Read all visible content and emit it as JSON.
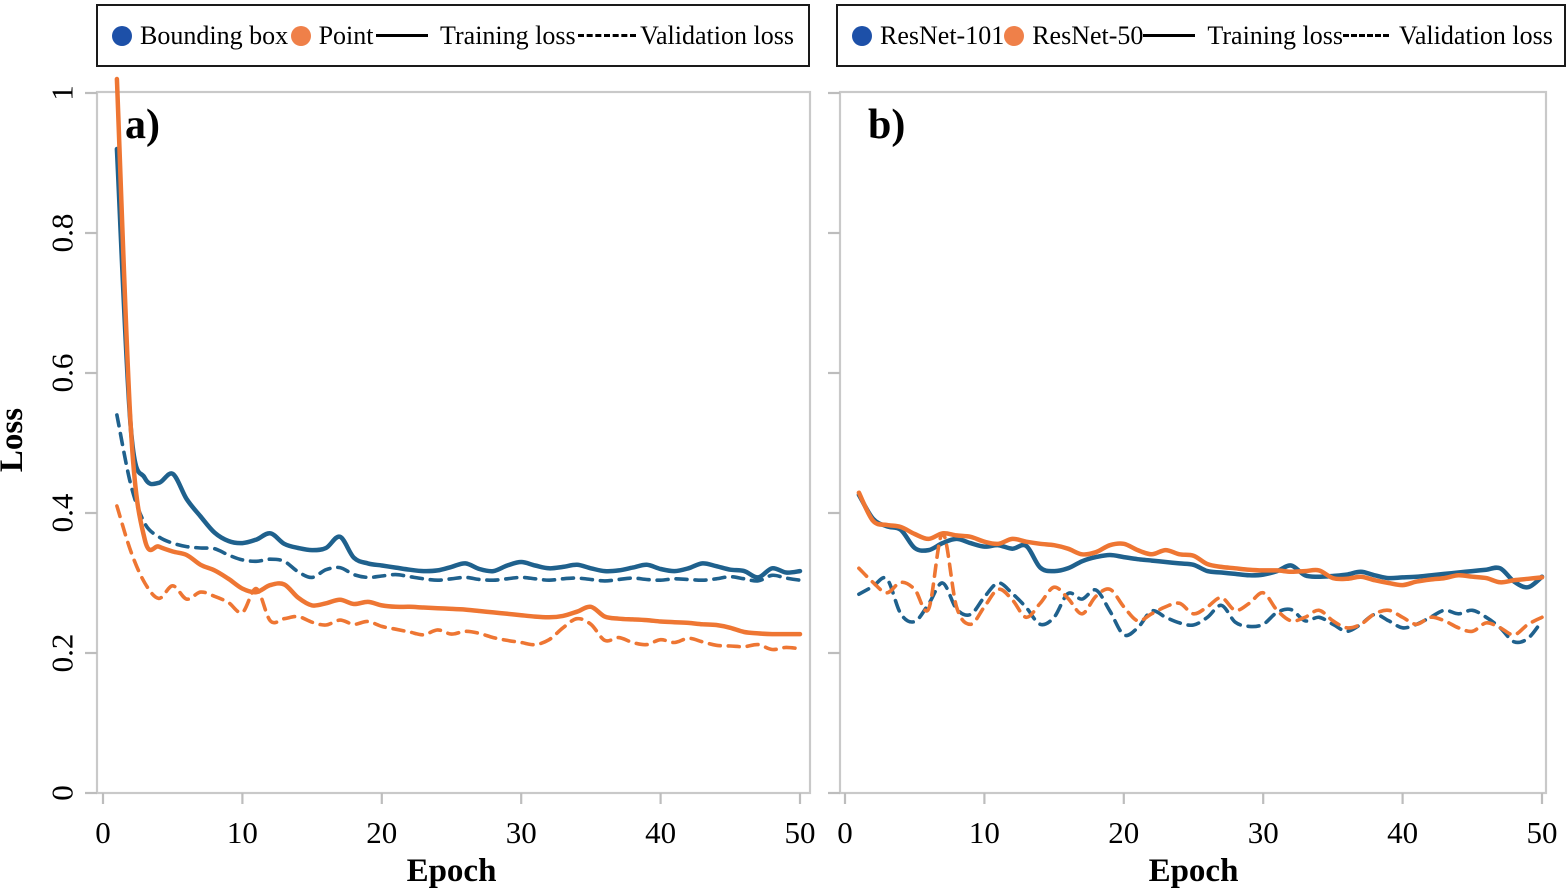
{
  "figure": {
    "background": "#ffffff",
    "axis_color": "#c9c9c9",
    "tick_color": "#bdbdbd",
    "text_color": "#000000",
    "colors": {
      "blue_line": "#1F618D",
      "orange_line": "#EE7633",
      "blue_marker": "#1D50A8",
      "orange_marker": "#EF8049",
      "legend_sample": "#000000"
    }
  },
  "legends": [
    {
      "entries": [
        {
          "marker": "dot",
          "color": "#1D50A8",
          "label": "Bounding box"
        },
        {
          "marker": "dot",
          "color": "#EF8049",
          "label": "Point"
        },
        {
          "marker": "solid-line",
          "label": "Training loss"
        },
        {
          "marker": "dashed-line",
          "label": "Validation loss"
        }
      ]
    },
    {
      "entries": [
        {
          "marker": "dot",
          "color": "#1D50A8",
          "label": "ResNet-101"
        },
        {
          "marker": "dot",
          "color": "#EF8049",
          "label": "ResNet-50"
        },
        {
          "marker": "solid-line",
          "label": "Training loss"
        },
        {
          "marker": "dashed-line",
          "label": "Validation loss"
        }
      ]
    }
  ],
  "chart_data": [
    {
      "type": "line",
      "panel_label": "a)",
      "xlabel": "Epoch",
      "ylabel": "Loss",
      "xlim": [
        0,
        50
      ],
      "ylim": [
        0,
        1
      ],
      "xticks": [
        0,
        10,
        20,
        30,
        40,
        50
      ],
      "yticks": [
        0,
        0.2,
        0.4,
        0.6,
        0.8,
        1
      ],
      "ytick_labels": [
        "0",
        "0.2",
        "0.4",
        "0.6",
        "0.8",
        "1"
      ],
      "show_ytick_labels": true,
      "grid": false,
      "legend_position": "top-outside",
      "x_start_epoch": 1,
      "series": [
        {
          "name": "Bounding box - Training loss",
          "color": "#1F618D",
          "style": "solid",
          "values": [
            0.92,
            0.52,
            0.45,
            0.443,
            0.456,
            0.42,
            0.395,
            0.372,
            0.36,
            0.357,
            0.362,
            0.371,
            0.356,
            0.35,
            0.347,
            0.35,
            0.366,
            0.336,
            0.328,
            0.325,
            0.322,
            0.319,
            0.317,
            0.318,
            0.323,
            0.328,
            0.32,
            0.317,
            0.325,
            0.33,
            0.325,
            0.321,
            0.323,
            0.326,
            0.321,
            0.317,
            0.318,
            0.322,
            0.326,
            0.32,
            0.317,
            0.321,
            0.328,
            0.324,
            0.319,
            0.317,
            0.308,
            0.321,
            0.315,
            0.317
          ]
        },
        {
          "name": "Bounding box - Validation loss",
          "color": "#1F618D",
          "style": "dashed",
          "values": [
            0.54,
            0.44,
            0.385,
            0.366,
            0.357,
            0.352,
            0.35,
            0.349,
            0.34,
            0.333,
            0.331,
            0.334,
            0.331,
            0.316,
            0.308,
            0.319,
            0.322,
            0.312,
            0.308,
            0.31,
            0.312,
            0.309,
            0.306,
            0.304,
            0.306,
            0.308,
            0.305,
            0.304,
            0.306,
            0.308,
            0.306,
            0.304,
            0.306,
            0.307,
            0.305,
            0.303,
            0.305,
            0.307,
            0.305,
            0.304,
            0.306,
            0.305,
            0.304,
            0.306,
            0.309,
            0.306,
            0.303,
            0.311,
            0.307,
            0.304
          ]
        },
        {
          "name": "Point - Training loss",
          "color": "#EE7633",
          "style": "solid",
          "values": [
            1.02,
            0.52,
            0.362,
            0.352,
            0.345,
            0.34,
            0.326,
            0.318,
            0.306,
            0.292,
            0.287,
            0.297,
            0.298,
            0.279,
            0.268,
            0.271,
            0.276,
            0.27,
            0.273,
            0.268,
            0.266,
            0.266,
            0.265,
            0.264,
            0.263,
            0.262,
            0.26,
            0.258,
            0.256,
            0.254,
            0.252,
            0.251,
            0.253,
            0.259,
            0.266,
            0.252,
            0.249,
            0.248,
            0.247,
            0.245,
            0.244,
            0.243,
            0.241,
            0.24,
            0.236,
            0.23,
            0.228,
            0.227,
            0.227,
            0.227
          ]
        },
        {
          "name": "Point - Validation loss",
          "color": "#EE7633",
          "style": "dashed",
          "values": [
            0.41,
            0.345,
            0.3,
            0.278,
            0.296,
            0.277,
            0.287,
            0.281,
            0.272,
            0.258,
            0.292,
            0.246,
            0.249,
            0.252,
            0.244,
            0.24,
            0.247,
            0.241,
            0.245,
            0.238,
            0.234,
            0.23,
            0.226,
            0.233,
            0.227,
            0.231,
            0.228,
            0.222,
            0.218,
            0.215,
            0.212,
            0.219,
            0.236,
            0.249,
            0.241,
            0.218,
            0.222,
            0.215,
            0.212,
            0.219,
            0.215,
            0.221,
            0.216,
            0.211,
            0.21,
            0.209,
            0.212,
            0.205,
            0.208,
            0.206
          ]
        }
      ]
    },
    {
      "type": "line",
      "panel_label": "b)",
      "xlabel": "Epoch",
      "ylabel": "",
      "xlim": [
        0,
        50
      ],
      "ylim": [
        0,
        1
      ],
      "xticks": [
        0,
        10,
        20,
        30,
        40,
        50
      ],
      "yticks": [
        0,
        0.2,
        0.4,
        0.6,
        0.8,
        1
      ],
      "ytick_labels": [],
      "show_ytick_labels": false,
      "grid": false,
      "legend_position": "top-outside",
      "x_start_epoch": 1,
      "series": [
        {
          "name": "ResNet-101 - Training loss",
          "color": "#1F618D",
          "style": "solid",
          "values": [
            0.426,
            0.392,
            0.381,
            0.376,
            0.35,
            0.347,
            0.357,
            0.363,
            0.357,
            0.352,
            0.354,
            0.349,
            0.353,
            0.322,
            0.317,
            0.321,
            0.331,
            0.337,
            0.34,
            0.337,
            0.334,
            0.332,
            0.33,
            0.328,
            0.326,
            0.317,
            0.315,
            0.313,
            0.311,
            0.312,
            0.317,
            0.325,
            0.311,
            0.309,
            0.31,
            0.312,
            0.316,
            0.311,
            0.307,
            0.308,
            0.309,
            0.311,
            0.313,
            0.315,
            0.317,
            0.319,
            0.321,
            0.302,
            0.294,
            0.309
          ]
        },
        {
          "name": "ResNet-101 - Validation loss",
          "color": "#1F618D",
          "style": "dashed",
          "values": [
            0.284,
            0.295,
            0.306,
            0.256,
            0.245,
            0.27,
            0.3,
            0.263,
            0.255,
            0.28,
            0.3,
            0.285,
            0.265,
            0.241,
            0.251,
            0.285,
            0.277,
            0.29,
            0.26,
            0.226,
            0.236,
            0.26,
            0.251,
            0.243,
            0.24,
            0.251,
            0.268,
            0.244,
            0.238,
            0.241,
            0.258,
            0.262,
            0.246,
            0.251,
            0.241,
            0.231,
            0.241,
            0.255,
            0.246,
            0.236,
            0.241,
            0.251,
            0.261,
            0.256,
            0.261,
            0.251,
            0.236,
            0.216,
            0.221,
            0.246
          ]
        },
        {
          "name": "ResNet-50 - Training loss",
          "color": "#EE7633",
          "style": "solid",
          "values": [
            0.429,
            0.389,
            0.383,
            0.38,
            0.37,
            0.363,
            0.371,
            0.368,
            0.366,
            0.359,
            0.356,
            0.363,
            0.359,
            0.356,
            0.354,
            0.349,
            0.341,
            0.344,
            0.354,
            0.356,
            0.347,
            0.341,
            0.347,
            0.341,
            0.339,
            0.327,
            0.323,
            0.321,
            0.319,
            0.318,
            0.318,
            0.316,
            0.317,
            0.318,
            0.307,
            0.306,
            0.309,
            0.304,
            0.3,
            0.297,
            0.302,
            0.305,
            0.307,
            0.311,
            0.309,
            0.307,
            0.301,
            0.304,
            0.306,
            0.308
          ]
        },
        {
          "name": "ResNet-50 - Validation loss",
          "color": "#EE7633",
          "style": "dashed",
          "values": [
            0.321,
            0.301,
            0.286,
            0.301,
            0.291,
            0.263,
            0.371,
            0.266,
            0.241,
            0.266,
            0.291,
            0.276,
            0.251,
            0.271,
            0.294,
            0.278,
            0.256,
            0.281,
            0.291,
            0.266,
            0.246,
            0.256,
            0.266,
            0.271,
            0.256,
            0.266,
            0.279,
            0.261,
            0.271,
            0.286,
            0.261,
            0.246,
            0.251,
            0.261,
            0.246,
            0.236,
            0.241,
            0.256,
            0.261,
            0.251,
            0.241,
            0.251,
            0.246,
            0.236,
            0.231,
            0.243,
            0.236,
            0.226,
            0.241,
            0.251
          ]
        }
      ]
    }
  ]
}
